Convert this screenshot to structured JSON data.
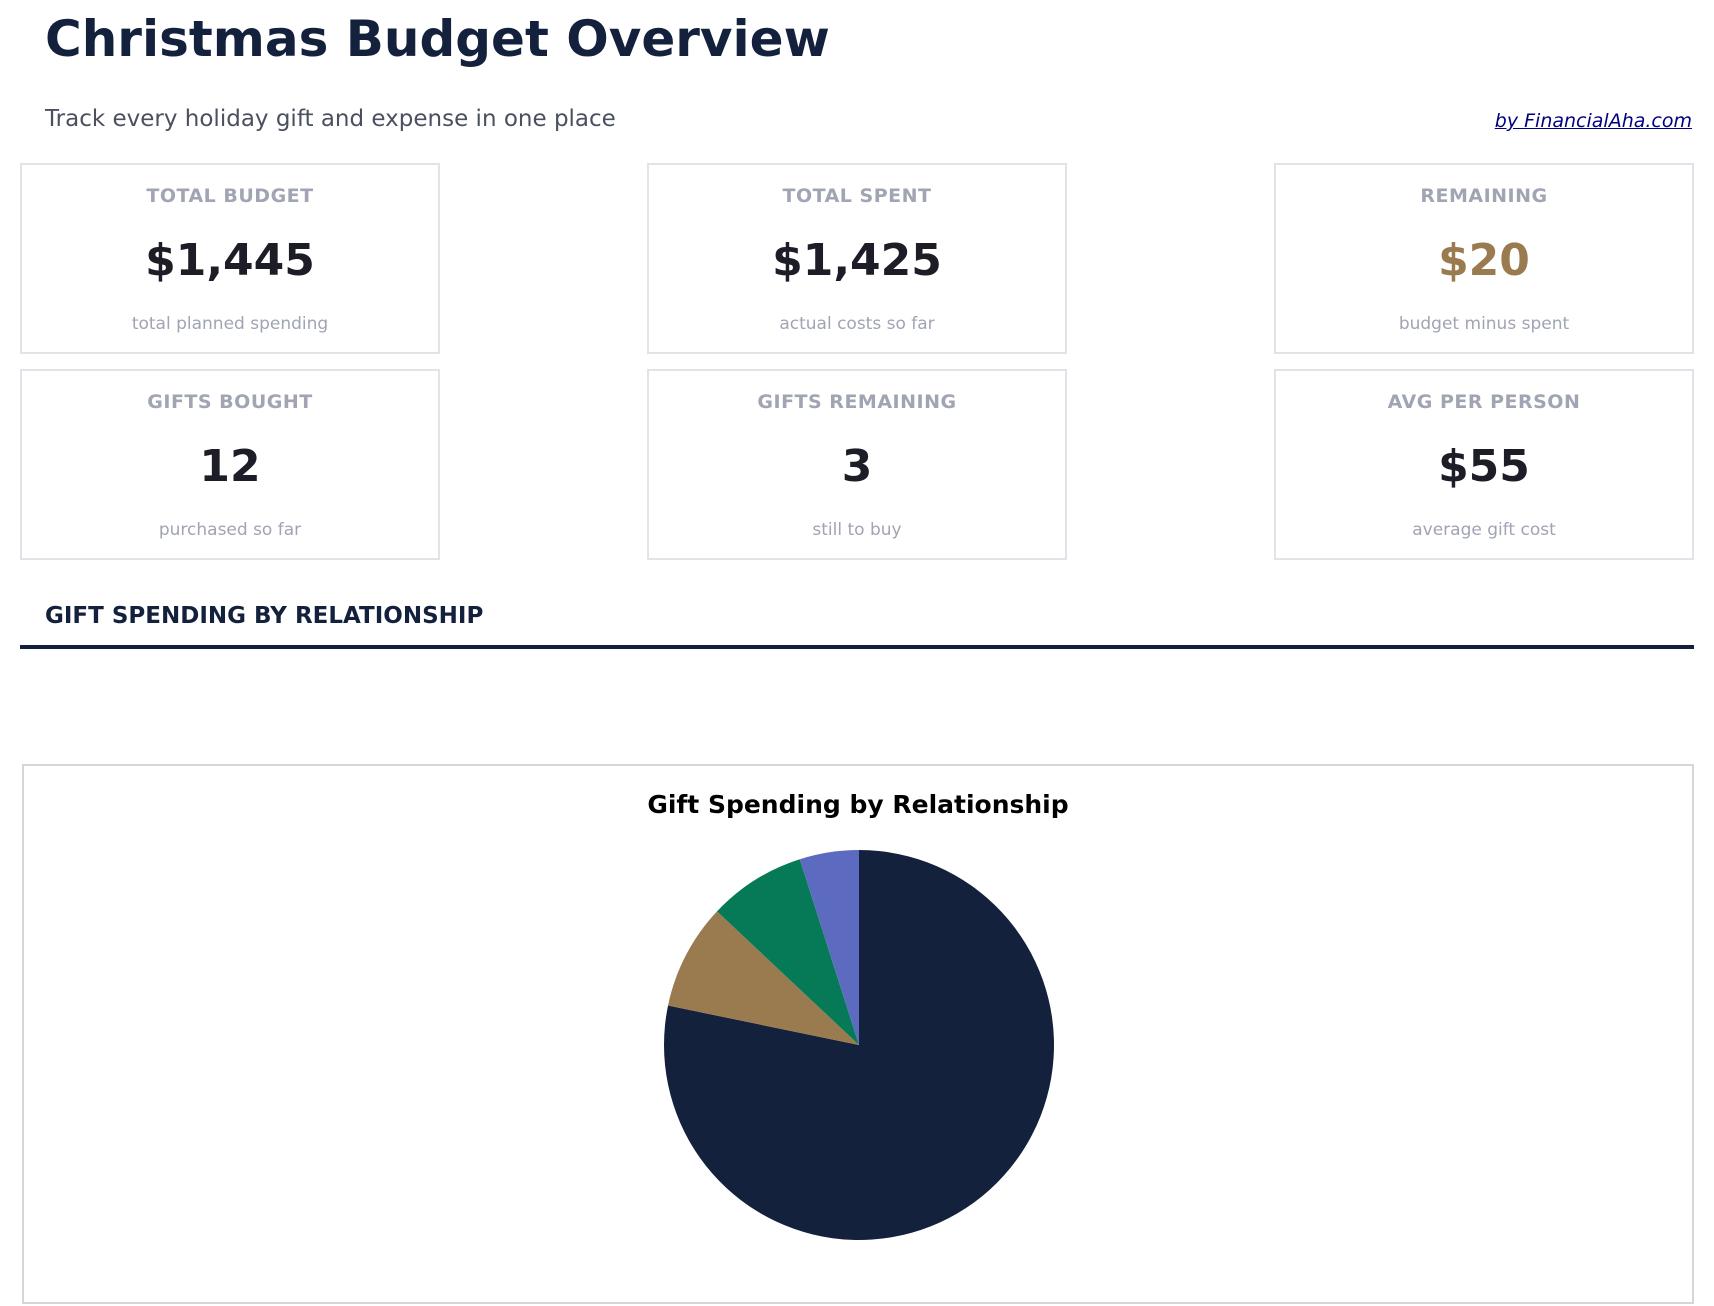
{
  "header": {
    "title": "Christmas Budget Overview",
    "subtitle": "Track every holiday gift and expense in one place",
    "credit": "by FinancialAha.com"
  },
  "cards": [
    {
      "label": "TOTAL BUDGET",
      "value": "$1,445",
      "sub": "total planned spending"
    },
    {
      "label": "TOTAL SPENT",
      "value": "$1,425",
      "sub": "actual costs so far"
    },
    {
      "label": "REMAINING",
      "value": "$20",
      "sub": "budget minus spent",
      "color": "#9a7b4f"
    },
    {
      "label": "GIFTS BOUGHT",
      "value": "12",
      "sub": "purchased so far"
    },
    {
      "label": "GIFTS REMAINING",
      "value": "3",
      "sub": "still to buy"
    },
    {
      "label": "AVG PER PERSON",
      "value": "$55",
      "sub": "average gift cost"
    }
  ],
  "section": {
    "title": "GIFT SPENDING BY RELATIONSHIP"
  },
  "chart_data": {
    "type": "pie",
    "title": "Gift Spending by Relationship",
    "values": [
      1115,
      125,
      115,
      70
    ],
    "colors": [
      "#14213d",
      "#9a7b4f",
      "#067a56",
      "#5c6bc0"
    ],
    "start_angle": "top",
    "direction": "clockwise",
    "legend": "none"
  }
}
